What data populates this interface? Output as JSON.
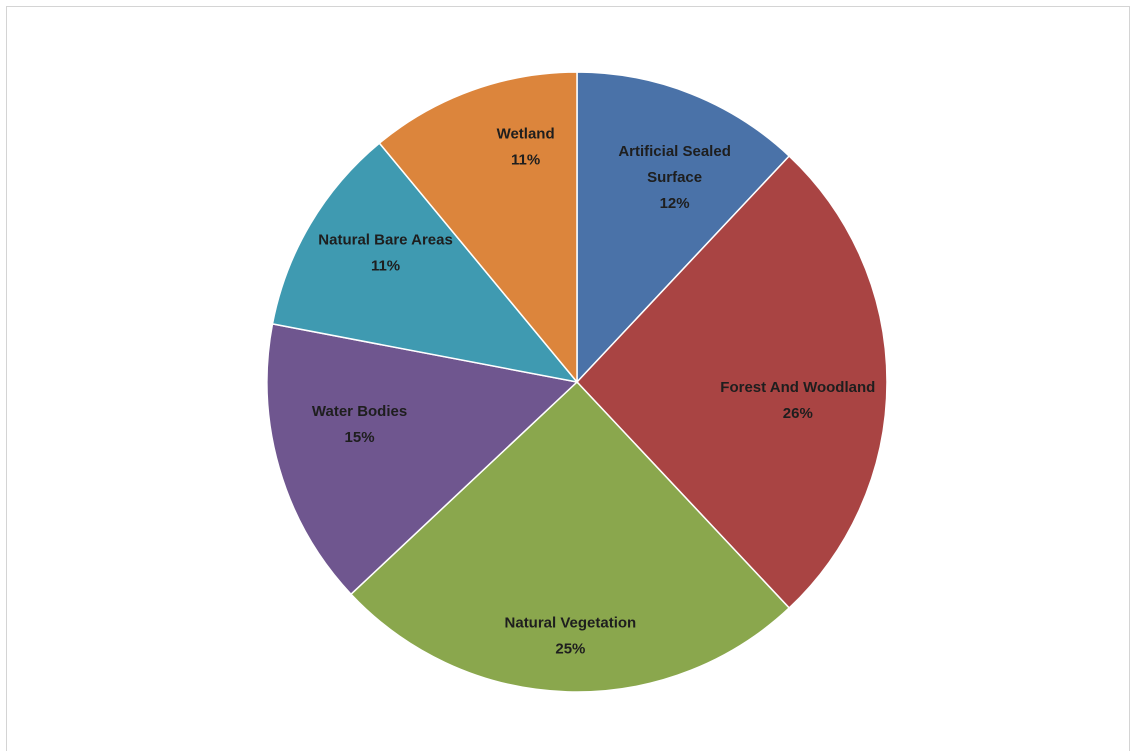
{
  "chart_data": {
    "type": "pie",
    "start_angle_deg": 0,
    "direction": "clockwise",
    "slices": [
      {
        "label": [
          "Artificial Sealed",
          "Surface"
        ],
        "value": 12,
        "value_label": "12%",
        "color": "#4a72a8"
      },
      {
        "label": [
          "Forest And Woodland"
        ],
        "value": 26,
        "value_label": "26%",
        "color": "#a94443"
      },
      {
        "label": [
          "Natural Vegetation"
        ],
        "value": 25,
        "value_label": "25%",
        "color": "#8aa74d"
      },
      {
        "label": [
          "Water Bodies"
        ],
        "value": 15,
        "value_label": "15%",
        "color": "#6f568f"
      },
      {
        "label": [
          "Natural Bare Areas"
        ],
        "value": 11,
        "value_label": "11%",
        "color": "#3f9ab1"
      },
      {
        "label": [
          "Wetland"
        ],
        "value": 11,
        "value_label": "11%",
        "color": "#dc853c"
      }
    ],
    "border_color": "#ffffff"
  }
}
